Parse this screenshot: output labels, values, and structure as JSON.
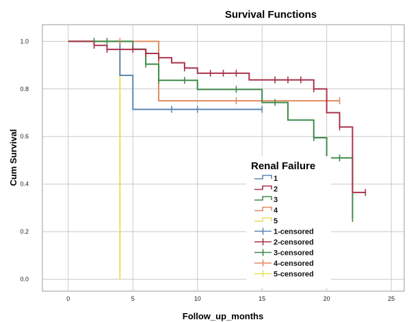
{
  "chart_data": {
    "type": "line",
    "title": "Survival Functions",
    "xlabel": "Follow_up_months",
    "ylabel": "Cum Survival",
    "xlim": [
      -2,
      26
    ],
    "ylim": [
      -0.05,
      1.07
    ],
    "xticks": [
      "0",
      "5",
      "10",
      "15",
      "20",
      "25"
    ],
    "yticks": [
      "0.0",
      "0.2",
      "0.4",
      "0.6",
      "0.8",
      "1.0"
    ],
    "grid": true,
    "legend_title": "Renal Failure",
    "legend_position": "bottom-right",
    "series": [
      {
        "name": "1",
        "censored_name": "1-censored",
        "color": "#5b87b5",
        "steps": [
          [
            0,
            1.0
          ],
          [
            4,
            0.857
          ],
          [
            5,
            0.714
          ],
          [
            15,
            0.714
          ]
        ],
        "censored": [
          [
            8,
            0.714
          ],
          [
            10,
            0.714
          ],
          [
            15,
            0.714
          ]
        ]
      },
      {
        "name": "2",
        "censored_name": "2-censored",
        "color": "#a8324a",
        "steps": [
          [
            0,
            1.0
          ],
          [
            2,
            0.983
          ],
          [
            3,
            0.966
          ],
          [
            6,
            0.949
          ],
          [
            7,
            0.931
          ],
          [
            8,
            0.91
          ],
          [
            9,
            0.888
          ],
          [
            10,
            0.866
          ],
          [
            14,
            0.838
          ],
          [
            19,
            0.8
          ],
          [
            20,
            0.7
          ],
          [
            21,
            0.64
          ],
          [
            22,
            0.365
          ],
          [
            23,
            0.365
          ]
        ],
        "censored": [
          [
            2,
            0.983
          ],
          [
            3,
            0.966
          ],
          [
            5,
            0.966
          ],
          [
            6,
            0.949
          ],
          [
            7,
            0.931
          ],
          [
            9,
            0.888
          ],
          [
            11,
            0.866
          ],
          [
            12,
            0.866
          ],
          [
            13,
            0.866
          ],
          [
            16,
            0.838
          ],
          [
            17,
            0.838
          ],
          [
            18,
            0.838
          ],
          [
            19,
            0.8
          ],
          [
            21,
            0.64
          ],
          [
            23,
            0.365
          ]
        ]
      },
      {
        "name": "3",
        "censored_name": "3-censored",
        "color": "#3d8a4a",
        "steps": [
          [
            0,
            1.0
          ],
          [
            5,
            0.967
          ],
          [
            6,
            0.904
          ],
          [
            7,
            0.836
          ],
          [
            10,
            0.798
          ],
          [
            15,
            0.743
          ],
          [
            17,
            0.669
          ],
          [
            19,
            0.595
          ],
          [
            20,
            0.51
          ],
          [
            22,
            0.255
          ]
        ],
        "censored": [
          [
            2,
            1.0
          ],
          [
            3,
            1.0
          ],
          [
            5,
            0.967
          ],
          [
            6,
            0.904
          ],
          [
            7,
            0.836
          ],
          [
            9,
            0.836
          ],
          [
            13,
            0.798
          ],
          [
            16,
            0.743
          ],
          [
            19,
            0.595
          ],
          [
            21,
            0.51
          ],
          [
            22,
            0.255
          ]
        ]
      },
      {
        "name": "4",
        "censored_name": "4-censored",
        "color": "#e08a5e",
        "steps": [
          [
            0,
            1.0
          ],
          [
            7,
            0.75
          ],
          [
            21,
            0.75
          ]
        ],
        "censored": [
          [
            4,
            1.0
          ],
          [
            13,
            0.75
          ],
          [
            21,
            0.75
          ]
        ]
      },
      {
        "name": "5",
        "censored_name": "5-censored",
        "color": "#e7df5a",
        "steps": [
          [
            0,
            1.0
          ],
          [
            4,
            0.0
          ]
        ],
        "censored": []
      }
    ]
  }
}
